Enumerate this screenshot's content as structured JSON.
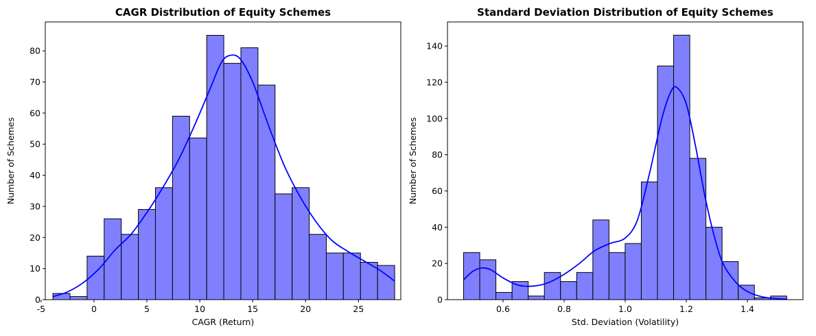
{
  "chart_data": [
    {
      "type": "bar",
      "title": "CAGR Distribution of Equity Schemes",
      "xlabel": "CAGR (Return)",
      "ylabel": "Number of Schemes",
      "xlim": [
        -4.6,
        29.0
      ],
      "ylim": [
        0,
        89.3
      ],
      "xticks": [
        -5,
        0,
        5,
        10,
        15,
        20,
        25
      ],
      "yticks": [
        0,
        10,
        20,
        30,
        40,
        50,
        60,
        70,
        80
      ],
      "bin_start": -3.88,
      "bin_width": 1.615,
      "values": [
        2,
        1,
        14,
        26,
        21,
        29,
        36,
        59,
        52,
        85,
        76,
        81,
        69,
        34,
        36,
        21,
        15,
        15,
        12,
        11
      ],
      "bar_color": "#8080ff",
      "kde_color": "#0000ff",
      "kde": [
        [
          -3.88,
          1.0
        ],
        [
          -2.5,
          2.5
        ],
        [
          -1,
          5.5
        ],
        [
          0.5,
          10
        ],
        [
          2,
          16
        ],
        [
          3.5,
          21
        ],
        [
          5,
          28
        ],
        [
          6.5,
          36
        ],
        [
          8,
          45
        ],
        [
          9.5,
          56
        ],
        [
          11,
          68
        ],
        [
          12,
          76
        ],
        [
          12.8,
          78.5
        ],
        [
          13.8,
          77.5
        ],
        [
          15,
          70
        ],
        [
          16.5,
          56
        ],
        [
          18,
          43
        ],
        [
          19.5,
          33
        ],
        [
          21,
          25
        ],
        [
          22.5,
          19
        ],
        [
          24,
          15.5
        ],
        [
          25.5,
          12.5
        ],
        [
          27,
          9.5
        ],
        [
          28.4,
          6
        ]
      ],
      "grid": false,
      "legend": "none"
    },
    {
      "type": "bar",
      "title": "Standard Deviation Distribution of Equity Schemes",
      "xlabel": "Std. Deviation (Volatility)",
      "ylabel": "Number of Schemes",
      "xlim": [
        0.418,
        1.582
      ],
      "ylim": [
        0,
        153.3
      ],
      "xticks": [
        0.6,
        0.8,
        1.0,
        1.2,
        1.4
      ],
      "xtick_labels": [
        "0.6",
        "0.8",
        "1.0",
        "1.2",
        "1.4"
      ],
      "yticks": [
        0,
        20,
        40,
        60,
        80,
        100,
        120,
        140
      ],
      "bin_start": 0.4708,
      "bin_width": 0.0529,
      "values": [
        26,
        22,
        4,
        10,
        2,
        15,
        10,
        15,
        44,
        26,
        31,
        65,
        129,
        146,
        78,
        40,
        21,
        8,
        1,
        2
      ],
      "bar_color": "#8080ff",
      "kde_color": "#0000ff",
      "kde": [
        [
          0.471,
          11
        ],
        [
          0.5,
          15.5
        ],
        [
          0.53,
          17.5
        ],
        [
          0.56,
          16.5
        ],
        [
          0.6,
          12
        ],
        [
          0.65,
          8
        ],
        [
          0.7,
          7.5
        ],
        [
          0.75,
          9.5
        ],
        [
          0.8,
          14
        ],
        [
          0.85,
          20
        ],
        [
          0.9,
          27
        ],
        [
          0.95,
          31
        ],
        [
          1.0,
          34
        ],
        [
          1.04,
          44
        ],
        [
          1.08,
          70
        ],
        [
          1.12,
          100
        ],
        [
          1.15,
          115
        ],
        [
          1.17,
          117
        ],
        [
          1.2,
          108
        ],
        [
          1.23,
          85
        ],
        [
          1.26,
          58
        ],
        [
          1.29,
          36
        ],
        [
          1.32,
          20
        ],
        [
          1.36,
          10
        ],
        [
          1.4,
          4.5
        ],
        [
          1.45,
          1.5
        ],
        [
          1.5,
          0.5
        ],
        [
          1.53,
          0.3
        ]
      ],
      "grid": false,
      "legend": "none"
    }
  ]
}
